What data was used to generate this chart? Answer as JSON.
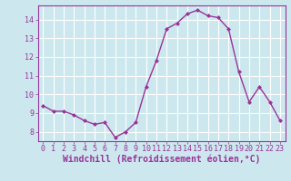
{
  "x": [
    0,
    1,
    2,
    3,
    4,
    5,
    6,
    7,
    8,
    9,
    10,
    11,
    12,
    13,
    14,
    15,
    16,
    17,
    18,
    19,
    20,
    21,
    22,
    23
  ],
  "y": [
    9.4,
    9.1,
    9.1,
    8.9,
    8.6,
    8.4,
    8.5,
    7.7,
    8.0,
    8.5,
    10.4,
    11.8,
    13.5,
    13.8,
    14.3,
    14.5,
    14.2,
    14.1,
    13.5,
    11.2,
    9.6,
    10.4,
    9.6,
    8.6
  ],
  "line_color": "#993399",
  "marker": "D",
  "marker_size": 2.0,
  "line_width": 1.0,
  "bg_color": "#cce8ee",
  "grid_color": "#ffffff",
  "xlabel": "Windchill (Refroidissement éolien,°C)",
  "xlabel_color": "#993399",
  "tick_color": "#993399",
  "spine_color": "#993399",
  "xlim": [
    -0.5,
    23.5
  ],
  "ylim": [
    7.5,
    14.75
  ],
  "yticks": [
    8,
    9,
    10,
    11,
    12,
    13,
    14
  ],
  "xticks": [
    0,
    1,
    2,
    3,
    4,
    5,
    6,
    7,
    8,
    9,
    10,
    11,
    12,
    13,
    14,
    15,
    16,
    17,
    18,
    19,
    20,
    21,
    22,
    23
  ],
  "label_fontsize": 6.5,
  "tick_fontsize": 6.0,
  "xlabel_fontsize": 7.0
}
